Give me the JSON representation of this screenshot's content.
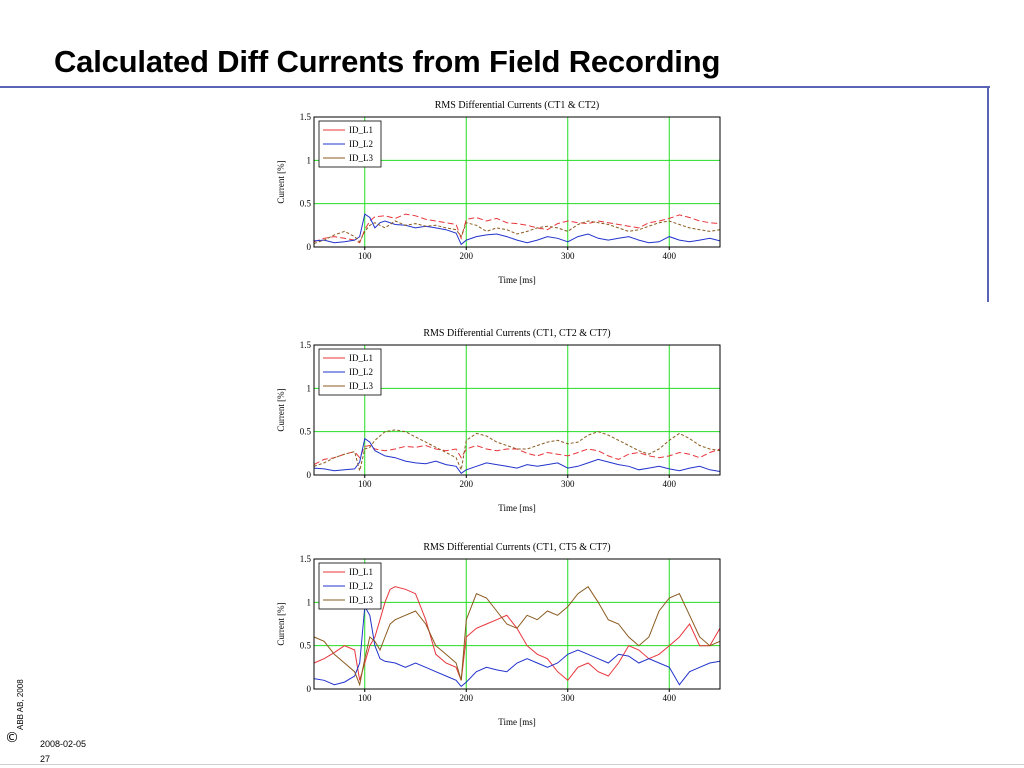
{
  "slide": {
    "title": "Calculated Diff Currents from Field Recording",
    "copyright": "ABB AB, 2008",
    "copyright_symbol": "©",
    "date": "2008-02-05",
    "page_number": "27",
    "accent_color": "#5b63b7"
  },
  "chart_data": [
    {
      "type": "line",
      "title": "RMS Differential Currents (CT1 & CT2)",
      "xlabel": "Time [ms]",
      "ylabel": "Current [%]",
      "xlim": [
        50,
        450
      ],
      "ylim": [
        0,
        1.5
      ],
      "xticks": [
        100,
        200,
        300,
        400
      ],
      "yticks": [
        0,
        0.5,
        1,
        1.5
      ],
      "ytick_labels": [
        "0",
        "0.5",
        "1",
        "1.5"
      ],
      "grid": true,
      "grid_color": "#22dd22",
      "legend_position": "top-left",
      "series": [
        {
          "name": "ID_L1",
          "color": "#e8353b",
          "dash": "6,3",
          "x": [
            50,
            60,
            70,
            80,
            90,
            95,
            100,
            105,
            110,
            120,
            130,
            140,
            150,
            160,
            170,
            180,
            190,
            195,
            200,
            210,
            220,
            230,
            240,
            250,
            260,
            270,
            280,
            290,
            300,
            310,
            320,
            330,
            340,
            350,
            360,
            370,
            380,
            390,
            400,
            410,
            420,
            430,
            440,
            450
          ],
          "values": [
            0.06,
            0.1,
            0.12,
            0.1,
            0.08,
            0.05,
            0.2,
            0.3,
            0.35,
            0.36,
            0.33,
            0.38,
            0.36,
            0.32,
            0.3,
            0.28,
            0.26,
            0.1,
            0.32,
            0.34,
            0.3,
            0.33,
            0.28,
            0.27,
            0.25,
            0.22,
            0.2,
            0.27,
            0.3,
            0.28,
            0.27,
            0.3,
            0.28,
            0.26,
            0.24,
            0.22,
            0.28,
            0.3,
            0.33,
            0.37,
            0.34,
            0.3,
            0.28,
            0.27
          ]
        },
        {
          "name": "ID_L2",
          "color": "#2233cc",
          "dash": "",
          "x": [
            50,
            60,
            70,
            80,
            90,
            95,
            100,
            105,
            110,
            115,
            120,
            130,
            140,
            150,
            160,
            170,
            180,
            190,
            195,
            200,
            210,
            220,
            230,
            240,
            250,
            260,
            270,
            280,
            290,
            300,
            310,
            320,
            330,
            340,
            350,
            360,
            370,
            380,
            390,
            400,
            410,
            420,
            430,
            440,
            450
          ],
          "values": [
            0.07,
            0.08,
            0.05,
            0.06,
            0.08,
            0.12,
            0.38,
            0.34,
            0.22,
            0.28,
            0.3,
            0.26,
            0.25,
            0.22,
            0.24,
            0.22,
            0.2,
            0.16,
            0.03,
            0.08,
            0.12,
            0.14,
            0.15,
            0.12,
            0.08,
            0.05,
            0.08,
            0.12,
            0.1,
            0.06,
            0.12,
            0.15,
            0.1,
            0.08,
            0.1,
            0.12,
            0.08,
            0.05,
            0.06,
            0.12,
            0.08,
            0.06,
            0.08,
            0.1,
            0.07
          ]
        },
        {
          "name": "ID_L3",
          "color": "#8a5a1e",
          "dash": "3,2",
          "x": [
            50,
            60,
            70,
            80,
            90,
            95,
            100,
            105,
            110,
            120,
            130,
            140,
            150,
            160,
            170,
            180,
            190,
            195,
            200,
            210,
            220,
            230,
            240,
            250,
            260,
            270,
            280,
            290,
            300,
            310,
            320,
            330,
            340,
            350,
            360,
            370,
            380,
            390,
            400,
            410,
            420,
            430,
            440,
            450
          ],
          "values": [
            0.04,
            0.08,
            0.14,
            0.18,
            0.12,
            0.06,
            0.18,
            0.25,
            0.28,
            0.22,
            0.3,
            0.25,
            0.27,
            0.24,
            0.25,
            0.22,
            0.2,
            0.12,
            0.28,
            0.25,
            0.18,
            0.22,
            0.2,
            0.15,
            0.18,
            0.22,
            0.24,
            0.22,
            0.18,
            0.26,
            0.3,
            0.28,
            0.26,
            0.22,
            0.18,
            0.2,
            0.24,
            0.28,
            0.3,
            0.26,
            0.22,
            0.2,
            0.18,
            0.2
          ]
        }
      ]
    },
    {
      "type": "line",
      "title": "RMS Differential Currents (CT1, CT2 & CT7)",
      "xlabel": "Time [ms]",
      "ylabel": "Current [%]",
      "xlim": [
        50,
        450
      ],
      "ylim": [
        0,
        1.5
      ],
      "xticks": [
        100,
        200,
        300,
        400
      ],
      "yticks": [
        0,
        0.5,
        1,
        1.5
      ],
      "ytick_labels": [
        "0",
        "0.5",
        "1",
        "1.5"
      ],
      "grid": true,
      "grid_color": "#22dd22",
      "legend_position": "top-left",
      "series": [
        {
          "name": "ID_L1",
          "color": "#e8353b",
          "dash": "6,3",
          "x": [
            50,
            60,
            70,
            80,
            90,
            95,
            100,
            105,
            110,
            120,
            130,
            140,
            150,
            160,
            170,
            180,
            190,
            195,
            200,
            210,
            220,
            230,
            240,
            250,
            260,
            270,
            280,
            290,
            300,
            310,
            320,
            330,
            340,
            350,
            360,
            370,
            380,
            390,
            400,
            410,
            420,
            430,
            440,
            450
          ],
          "values": [
            0.12,
            0.18,
            0.2,
            0.24,
            0.27,
            0.2,
            0.33,
            0.34,
            0.3,
            0.28,
            0.3,
            0.33,
            0.32,
            0.34,
            0.3,
            0.28,
            0.3,
            0.2,
            0.3,
            0.34,
            0.3,
            0.28,
            0.3,
            0.3,
            0.25,
            0.22,
            0.26,
            0.24,
            0.22,
            0.26,
            0.3,
            0.28,
            0.22,
            0.18,
            0.24,
            0.26,
            0.22,
            0.2,
            0.22,
            0.26,
            0.24,
            0.2,
            0.26,
            0.3
          ]
        },
        {
          "name": "ID_L2",
          "color": "#2233cc",
          "dash": "",
          "x": [
            50,
            60,
            70,
            80,
            90,
            95,
            100,
            105,
            110,
            115,
            120,
            130,
            140,
            150,
            160,
            170,
            180,
            190,
            195,
            200,
            210,
            220,
            230,
            240,
            250,
            260,
            270,
            280,
            290,
            300,
            310,
            320,
            330,
            340,
            350,
            360,
            370,
            380,
            390,
            400,
            410,
            420,
            430,
            440,
            450
          ],
          "values": [
            0.08,
            0.07,
            0.05,
            0.06,
            0.07,
            0.15,
            0.42,
            0.38,
            0.28,
            0.25,
            0.22,
            0.2,
            0.16,
            0.14,
            0.13,
            0.16,
            0.12,
            0.1,
            0.02,
            0.06,
            0.1,
            0.14,
            0.12,
            0.1,
            0.08,
            0.12,
            0.1,
            0.12,
            0.14,
            0.08,
            0.1,
            0.14,
            0.18,
            0.15,
            0.12,
            0.1,
            0.06,
            0.08,
            0.1,
            0.07,
            0.05,
            0.08,
            0.1,
            0.06,
            0.04
          ]
        },
        {
          "name": "ID_L3",
          "color": "#8a5a1e",
          "dash": "3,2",
          "x": [
            50,
            60,
            70,
            80,
            90,
            95,
            100,
            105,
            110,
            120,
            130,
            140,
            150,
            160,
            170,
            180,
            190,
            195,
            200,
            210,
            220,
            230,
            240,
            250,
            260,
            270,
            280,
            290,
            300,
            310,
            320,
            330,
            340,
            350,
            360,
            370,
            380,
            390,
            400,
            410,
            420,
            430,
            440,
            450
          ],
          "values": [
            0.1,
            0.14,
            0.2,
            0.24,
            0.27,
            0.05,
            0.3,
            0.32,
            0.4,
            0.5,
            0.52,
            0.5,
            0.44,
            0.38,
            0.32,
            0.26,
            0.2,
            0.06,
            0.4,
            0.48,
            0.45,
            0.38,
            0.34,
            0.3,
            0.3,
            0.34,
            0.38,
            0.4,
            0.36,
            0.38,
            0.46,
            0.5,
            0.46,
            0.4,
            0.34,
            0.28,
            0.24,
            0.3,
            0.4,
            0.48,
            0.42,
            0.34,
            0.3,
            0.28
          ]
        }
      ]
    },
    {
      "type": "line",
      "title": "RMS Differential Currents (CT1, CT5 & CT7)",
      "xlabel": "Time [ms]",
      "ylabel": "Current [%]",
      "xlim": [
        50,
        450
      ],
      "ylim": [
        0,
        1.5
      ],
      "xticks": [
        100,
        200,
        300,
        400
      ],
      "yticks": [
        0,
        0.5,
        1,
        1.5
      ],
      "ytick_labels": [
        "0",
        "0.5",
        "1",
        "1.5"
      ],
      "grid": true,
      "grid_color": "#22dd22",
      "legend_position": "top-left",
      "series": [
        {
          "name": "ID_L1",
          "color": "#e8353b",
          "dash": "",
          "x": [
            50,
            60,
            70,
            80,
            90,
            95,
            100,
            105,
            110,
            115,
            120,
            125,
            130,
            140,
            150,
            160,
            170,
            180,
            190,
            195,
            200,
            210,
            220,
            230,
            240,
            250,
            260,
            270,
            280,
            290,
            300,
            310,
            320,
            330,
            340,
            350,
            360,
            370,
            380,
            390,
            400,
            410,
            420,
            430,
            440,
            450
          ],
          "values": [
            0.3,
            0.35,
            0.42,
            0.5,
            0.45,
            0.1,
            0.3,
            0.5,
            0.6,
            0.8,
            1.0,
            1.15,
            1.18,
            1.15,
            1.1,
            0.8,
            0.4,
            0.3,
            0.25,
            0.1,
            0.6,
            0.7,
            0.75,
            0.8,
            0.85,
            0.7,
            0.5,
            0.4,
            0.35,
            0.2,
            0.1,
            0.25,
            0.3,
            0.2,
            0.15,
            0.3,
            0.5,
            0.45,
            0.35,
            0.4,
            0.5,
            0.6,
            0.75,
            0.5,
            0.5,
            0.7
          ]
        },
        {
          "name": "ID_L2",
          "color": "#2233cc",
          "dash": "",
          "x": [
            50,
            60,
            70,
            80,
            90,
            95,
            100,
            105,
            110,
            115,
            120,
            130,
            140,
            150,
            160,
            170,
            180,
            190,
            195,
            200,
            210,
            220,
            230,
            240,
            250,
            260,
            270,
            280,
            290,
            300,
            310,
            320,
            330,
            340,
            350,
            360,
            370,
            380,
            390,
            400,
            410,
            420,
            430,
            440,
            450
          ],
          "values": [
            0.12,
            0.1,
            0.05,
            0.08,
            0.15,
            0.3,
            0.95,
            0.85,
            0.5,
            0.35,
            0.32,
            0.3,
            0.25,
            0.3,
            0.25,
            0.2,
            0.15,
            0.1,
            0.03,
            0.08,
            0.2,
            0.25,
            0.22,
            0.2,
            0.3,
            0.35,
            0.3,
            0.25,
            0.3,
            0.4,
            0.45,
            0.4,
            0.35,
            0.3,
            0.4,
            0.38,
            0.3,
            0.35,
            0.3,
            0.25,
            0.05,
            0.2,
            0.25,
            0.3,
            0.32
          ]
        },
        {
          "name": "ID_L3",
          "color": "#8a5a1e",
          "dash": "",
          "x": [
            50,
            60,
            70,
            80,
            90,
            95,
            100,
            105,
            110,
            115,
            120,
            125,
            130,
            140,
            150,
            160,
            170,
            180,
            190,
            195,
            200,
            210,
            220,
            230,
            240,
            250,
            260,
            270,
            280,
            290,
            300,
            310,
            320,
            330,
            340,
            350,
            360,
            370,
            380,
            390,
            400,
            410,
            420,
            430,
            440,
            450
          ],
          "values": [
            0.6,
            0.55,
            0.4,
            0.3,
            0.2,
            0.05,
            0.35,
            0.6,
            0.55,
            0.45,
            0.6,
            0.75,
            0.8,
            0.85,
            0.9,
            0.75,
            0.5,
            0.4,
            0.3,
            0.1,
            0.8,
            1.1,
            1.05,
            0.9,
            0.75,
            0.7,
            0.85,
            0.8,
            0.9,
            0.85,
            0.95,
            1.1,
            1.18,
            1.0,
            0.8,
            0.75,
            0.6,
            0.5,
            0.6,
            0.9,
            1.05,
            1.1,
            0.85,
            0.6,
            0.5,
            0.55
          ]
        }
      ]
    }
  ]
}
